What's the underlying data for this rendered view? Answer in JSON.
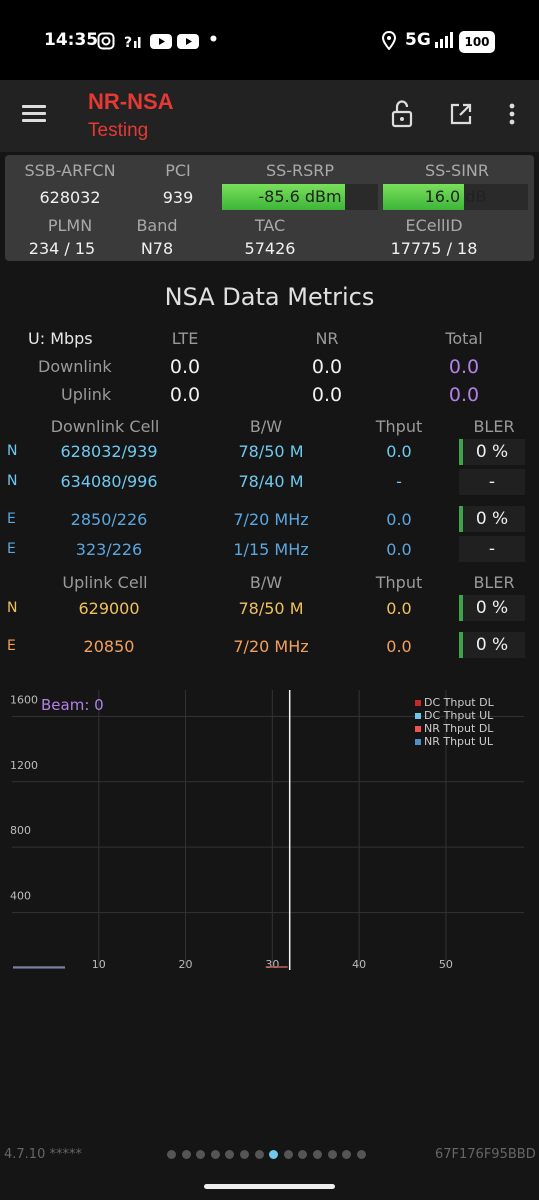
{
  "status": {
    "time": "14:35",
    "network": "5G",
    "battery": "100",
    "overflow_dot": "•"
  },
  "appbar": {
    "title": "NR-NSA",
    "subtitle": "Testing"
  },
  "info": {
    "headers1": [
      "SSB-ARFCN",
      "PCI",
      "SS-RSRP",
      "SS-SINR"
    ],
    "ssb_arfcn": "628032",
    "pci": "939",
    "rsrp": {
      "label": "-85.6 dBm",
      "fill_percent": 79
    },
    "sinr": {
      "label": "16.0 dB",
      "fill_percent": 56
    },
    "headers2": [
      "PLMN",
      "Band",
      "TAC",
      "ECellID"
    ],
    "plmn": "234 / 15",
    "band": "N78",
    "tac": "57426",
    "ecellid": "17775 / 18"
  },
  "metrics": {
    "title": "NSA Data Metrics",
    "unit_label": "U: Mbps",
    "cols": [
      "LTE",
      "NR",
      "Total"
    ],
    "downlink": {
      "label": "Downlink",
      "lte": "0.0",
      "nr": "0.0",
      "total": "0.0"
    },
    "uplink": {
      "label": "Uplink",
      "lte": "0.0",
      "nr": "0.0",
      "total": "0.0"
    }
  },
  "dl_cells": {
    "headers": [
      "Downlink Cell",
      "B/W",
      "Thput",
      "BLER"
    ],
    "rows": [
      {
        "tag": "N",
        "cell": "628032/939",
        "bw": "78/50 M",
        "thput": "0.0",
        "bler": "0 %"
      },
      {
        "tag": "N",
        "cell": "634080/996",
        "bw": "78/40 M",
        "thput": "-",
        "bler": "-"
      },
      {
        "tag": "E",
        "cell": "2850/226",
        "bw": "7/20 MHz",
        "thput": "0.0",
        "bler": "0 %"
      },
      {
        "tag": "E",
        "cell": "323/226",
        "bw": "1/15 MHz",
        "thput": "0.0",
        "bler": "-"
      }
    ]
  },
  "ul_cells": {
    "headers": [
      "Uplink Cell",
      "B/W",
      "Thput",
      "BLER"
    ],
    "rows": [
      {
        "tag": "N",
        "cell": "629000",
        "bw": "78/50 M",
        "thput": "0.0",
        "bler": "0 %"
      },
      {
        "tag": "E",
        "cell": "20850",
        "bw": "7/20 MHz",
        "thput": "0.0",
        "bler": "0 %"
      }
    ]
  },
  "chart_data": {
    "type": "line",
    "annotation": "Beam: 0",
    "x_ticks": [
      "10",
      "20",
      "30",
      "40",
      "50"
    ],
    "y_ticks": [
      "400",
      "800",
      "1200",
      "1600"
    ],
    "xlim": [
      0,
      59
    ],
    "ylim": [
      0,
      1700
    ],
    "legend_position": "top-right",
    "series": [
      {
        "name": "DC Thput DL",
        "color": "#c62828",
        "values": [
          0,
          0,
          0,
          0,
          0
        ]
      },
      {
        "name": "DC Thput UL",
        "color": "#6fc3ef",
        "values": [
          0,
          0,
          0,
          0,
          0
        ]
      },
      {
        "name": "NR Thput DL",
        "color": "#ef5350",
        "values": [
          0,
          0,
          0,
          0,
          0
        ]
      },
      {
        "name": "NR Thput UL",
        "color": "#4a90c9",
        "values": [
          0,
          0,
          0,
          0,
          0
        ]
      }
    ],
    "cursor_x": 32
  },
  "footer": {
    "version": "4.7.10 *****",
    "device_id": "67F176F95BBD",
    "page_count": 14,
    "active_page": 8
  }
}
